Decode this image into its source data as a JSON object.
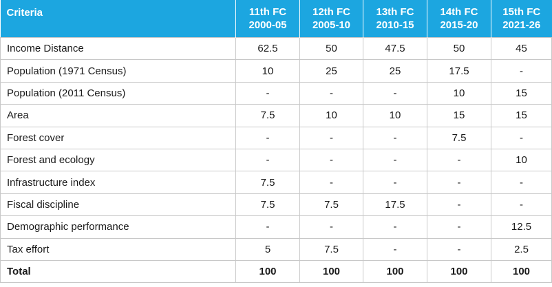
{
  "table": {
    "header": {
      "criteria": "Criteria",
      "columns": [
        {
          "name": "11th FC",
          "period": "2000-05"
        },
        {
          "name": "12th FC",
          "period": "2005-10"
        },
        {
          "name": "13th FC",
          "period": "2010-15"
        },
        {
          "name": "14th FC",
          "period": "2015-20"
        },
        {
          "name": "15th FC",
          "period": "2021-26"
        }
      ]
    },
    "rows": [
      {
        "criteria": "Income Distance",
        "values": [
          "62.5",
          "50",
          "47.5",
          "50",
          "45"
        ]
      },
      {
        "criteria": "Population (1971 Census)",
        "values": [
          "10",
          "25",
          "25",
          "17.5",
          "-"
        ]
      },
      {
        "criteria": "Population (2011 Census)",
        "values": [
          "-",
          "-",
          "-",
          "10",
          "15"
        ]
      },
      {
        "criteria": "Area",
        "values": [
          "7.5",
          "10",
          "10",
          "15",
          "15"
        ]
      },
      {
        "criteria": "Forest cover",
        "values": [
          "-",
          "-",
          "-",
          "7.5",
          "-"
        ]
      },
      {
        "criteria": "Forest and ecology",
        "values": [
          "-",
          "-",
          "-",
          "-",
          "10"
        ]
      },
      {
        "criteria": "Infrastructure index",
        "values": [
          "7.5",
          "-",
          "-",
          "-",
          "-"
        ]
      },
      {
        "criteria": "Fiscal discipline",
        "values": [
          "7.5",
          "7.5",
          "17.5",
          "-",
          "-"
        ]
      },
      {
        "criteria": "Demographic performance",
        "values": [
          "-",
          "-",
          "-",
          "-",
          "12.5"
        ]
      },
      {
        "criteria": "Tax effort",
        "values": [
          "5",
          "7.5",
          "-",
          "-",
          "2.5"
        ]
      },
      {
        "criteria": "Total",
        "values": [
          "100",
          "100",
          "100",
          "100",
          "100"
        ]
      }
    ]
  },
  "colors": {
    "header_bg": "#1ca6e0",
    "header_text": "#ffffff",
    "grid": "#c8c8c8"
  }
}
